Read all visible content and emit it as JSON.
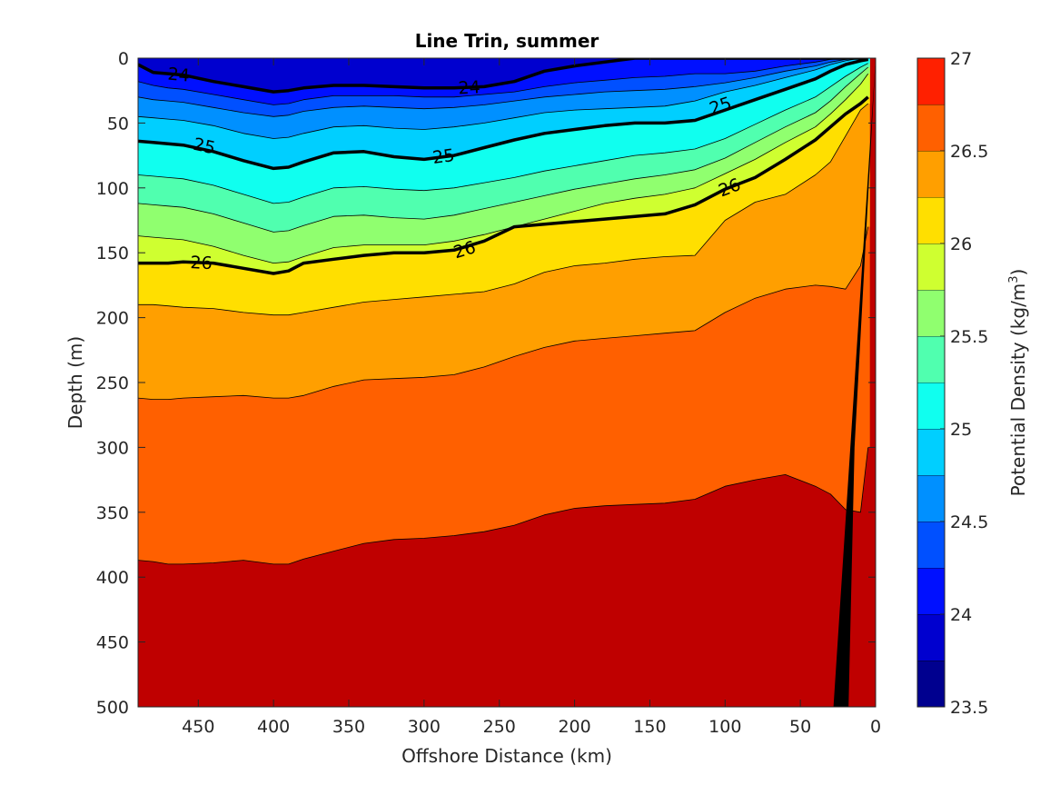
{
  "chart_data": {
    "type": "filled-contour",
    "title": "Line Trin, summer",
    "xlabel": "Offshore Distance (km)",
    "ylabel": "Depth (m)",
    "colorbar_label": "Potential Density (kg/m",
    "colorbar_label_sup": "3",
    "colorbar_label_end": ")",
    "x_reversed": true,
    "y_reversed": true,
    "xlim": [
      0,
      490
    ],
    "ylim": [
      0,
      500
    ],
    "x_ticks": [
      450,
      400,
      350,
      300,
      250,
      200,
      150,
      100,
      50,
      0
    ],
    "x_tick_labels": [
      "450",
      "400",
      "350",
      "300",
      "250",
      "200",
      "150",
      "100",
      "50",
      "0"
    ],
    "y_ticks": [
      0,
      50,
      100,
      150,
      200,
      250,
      300,
      350,
      400,
      450,
      500
    ],
    "y_tick_labels": [
      "0",
      "50",
      "100",
      "150",
      "200",
      "250",
      "300",
      "350",
      "400",
      "450",
      "500"
    ],
    "clim": [
      23.5,
      27
    ],
    "colorbar_ticks": [
      23.5,
      24,
      24.5,
      25,
      25.5,
      26,
      26.5,
      27
    ],
    "colorbar_tick_labels": [
      "23.5",
      "24",
      "24.5",
      "25",
      "25.5",
      "26",
      "26.5",
      "27"
    ],
    "level_step": 0.25,
    "levels": [
      23.5,
      23.75,
      24,
      24.25,
      24.5,
      24.75,
      25,
      25.25,
      25.5,
      25.75,
      26,
      26.25,
      26.5,
      26.75,
      27
    ],
    "level_colors": [
      "#00008f",
      "#0000cf",
      "#0010ff",
      "#0050ff",
      "#0090ff",
      "#00cfff",
      "#10ffef",
      "#50ffaf",
      "#90ff6f",
      "#cfff30",
      "#ffdf00",
      "#ff9f00",
      "#ff6000",
      "#ff2000",
      "#bf0000"
    ],
    "isopycnal_depths": {
      "x": [
        490,
        480,
        470,
        460,
        440,
        420,
        400,
        390,
        380,
        360,
        340,
        320,
        300,
        280,
        260,
        240,
        220,
        200,
        180,
        160,
        140,
        120,
        100,
        80,
        60,
        40,
        30,
        20,
        10,
        5
      ],
      "levels": [
        {
          "value": 23.75,
          "depth": [
            0,
            0,
            0,
            0,
            0,
            0,
            0,
            0,
            0,
            0,
            0,
            0,
            0,
            0,
            0,
            0,
            0,
            0,
            0,
            0,
            0,
            0,
            0,
            0,
            0,
            0,
            0,
            0,
            0,
            0
          ]
        },
        {
          "value": 24.0,
          "depth": [
            5,
            11,
            12,
            13,
            18,
            22,
            26,
            25,
            23,
            21,
            21,
            22,
            23,
            23,
            22,
            18,
            10,
            6,
            3,
            0,
            0,
            0,
            0,
            0,
            0,
            0,
            0,
            0,
            0,
            0
          ]
        },
        {
          "value": 24.25,
          "depth": [
            18,
            21,
            23,
            24,
            28,
            32,
            36,
            35,
            32,
            29,
            29,
            29,
            30,
            30,
            28,
            26,
            22,
            19,
            17,
            15,
            14,
            12,
            12,
            10,
            6,
            3,
            1,
            0,
            0,
            0
          ]
        },
        {
          "value": 24.5,
          "depth": [
            30,
            32,
            33,
            34,
            38,
            42,
            45,
            44,
            41,
            38,
            37,
            38,
            39,
            38,
            36,
            33,
            30,
            28,
            26,
            25,
            24,
            22,
            19,
            15,
            10,
            6,
            3,
            1,
            0,
            0
          ]
        },
        {
          "value": 24.75,
          "depth": [
            45,
            46,
            47,
            48,
            52,
            58,
            62,
            61,
            58,
            53,
            52,
            54,
            55,
            53,
            50,
            46,
            42,
            40,
            39,
            38,
            37,
            33,
            26,
            21,
            15,
            9,
            5,
            2,
            0,
            0
          ]
        },
        {
          "value": 25.0,
          "depth": [
            64,
            65,
            66,
            67,
            72,
            79,
            85,
            84,
            80,
            73,
            72,
            76,
            78,
            75,
            69,
            63,
            58,
            55,
            52,
            50,
            50,
            48,
            40,
            32,
            24,
            16,
            10,
            5,
            2,
            1
          ]
        },
        {
          "value": 25.25,
          "depth": [
            90,
            91,
            92,
            93,
            98,
            105,
            112,
            111,
            107,
            100,
            99,
            101,
            102,
            100,
            96,
            92,
            87,
            83,
            79,
            75,
            73,
            70,
            62,
            51,
            40,
            30,
            22,
            14,
            7,
            4
          ]
        },
        {
          "value": 25.5,
          "depth": [
            112,
            113,
            114,
            115,
            120,
            127,
            134,
            133,
            129,
            122,
            121,
            123,
            124,
            121,
            116,
            111,
            106,
            101,
            97,
            93,
            90,
            86,
            77,
            65,
            53,
            42,
            33,
            22,
            12,
            7
          ]
        },
        {
          "value": 25.75,
          "depth": [
            137,
            138,
            139,
            140,
            145,
            152,
            158,
            157,
            153,
            146,
            144,
            144,
            144,
            141,
            136,
            130,
            124,
            118,
            112,
            108,
            105,
            100,
            89,
            78,
            65,
            53,
            43,
            32,
            20,
            12
          ]
        },
        {
          "value": 26.0,
          "depth": [
            158,
            158,
            158,
            157,
            158,
            162,
            166,
            164,
            158,
            155,
            152,
            150,
            150,
            148,
            141,
            130,
            128,
            126,
            124,
            122,
            120,
            113,
            101,
            92,
            78,
            63,
            53,
            43,
            35,
            30
          ]
        },
        {
          "value": 26.25,
          "depth": [
            190,
            190,
            191,
            192,
            193,
            196,
            198,
            198,
            196,
            192,
            188,
            186,
            184,
            182,
            180,
            174,
            165,
            160,
            158,
            155,
            153,
            152,
            125,
            111,
            105,
            90,
            80,
            60,
            40,
            35
          ]
        },
        {
          "value": 26.5,
          "depth": [
            262,
            263,
            263,
            262,
            261,
            260,
            262,
            262,
            260,
            253,
            248,
            247,
            246,
            244,
            238,
            230,
            223,
            218,
            216,
            214,
            212,
            210,
            196,
            185,
            178,
            175,
            176,
            178,
            160,
            130
          ]
        },
        {
          "value": 26.75,
          "depth": [
            387,
            388,
            390,
            390,
            389,
            387,
            390,
            390,
            386,
            380,
            374,
            371,
            370,
            368,
            365,
            360,
            352,
            347,
            345,
            344,
            343,
            340,
            330,
            325,
            321,
            330,
            336,
            348,
            350,
            300
          ]
        }
      ]
    },
    "bathymetry": {
      "x": [
        0,
        28,
        18,
        14,
        0
      ],
      "depth": [
        0,
        500,
        500,
        300,
        0
      ]
    },
    "labeled_contours": [
      {
        "value": 24,
        "label": "24",
        "positions": [
          {
            "x": 463,
            "depth": 13
          },
          {
            "x": 270,
            "depth": 23
          }
        ]
      },
      {
        "value": 25,
        "label": "25",
        "positions": [
          {
            "x": 446,
            "depth": 68
          },
          {
            "x": 287,
            "depth": 76
          },
          {
            "x": 103,
            "depth": 37
          }
        ]
      },
      {
        "value": 26,
        "label": "26",
        "positions": [
          {
            "x": 448,
            "depth": 158
          },
          {
            "x": 273,
            "depth": 148
          },
          {
            "x": 97,
            "depth": 100
          }
        ]
      }
    ]
  }
}
